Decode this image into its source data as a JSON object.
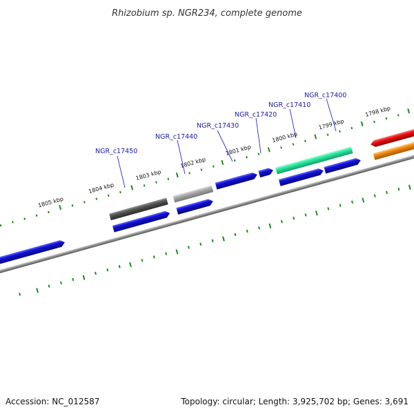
{
  "header": {
    "title": "Rhizobium sp. NGR234, complete genome"
  },
  "footer": {
    "accession": "Accession: NC_012587",
    "summary": "Topology: circular; Length: 3,925,702 bp; Genes: 3,691"
  },
  "scale_labels": [
    "1805 kbp",
    "1804 kbp",
    "1803 kbp",
    "1802 kbp",
    "1801 kbp",
    "1800 kbp",
    "1799 kbp",
    "1798 kbp"
  ],
  "gene_labels": [
    "NGR_c17450",
    "NGR_c17440",
    "NGR_c17430",
    "NGR_c17420",
    "NGR_c17410",
    "NGR_c17400"
  ],
  "colors": {
    "cds": "#1010d8",
    "backbone": "#8a8a8a",
    "tick": "#1c8a1c",
    "leader": "#2a2ad0",
    "label": "#1a1aa6",
    "gene_dark": "#555555",
    "gene_light": "#aaaaaa",
    "gene_mint": "#2ee8a0",
    "gene_red": "#ee1111",
    "gene_orange": "#f58a10",
    "gene_cyan": "#10c8c8"
  }
}
